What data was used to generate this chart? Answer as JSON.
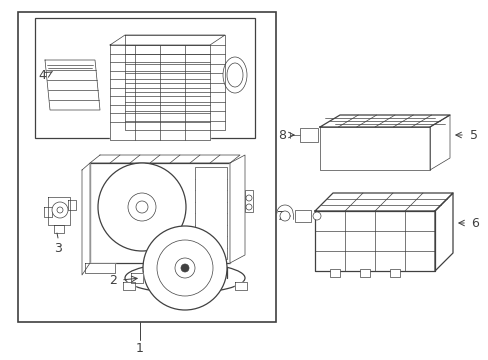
{
  "bg_color": "#ffffff",
  "line_color": "#404040",
  "lw_main": 0.9,
  "lw_thin": 0.5,
  "lw_thick": 1.2,
  "fig_w": 4.89,
  "fig_h": 3.6,
  "dpi": 100
}
